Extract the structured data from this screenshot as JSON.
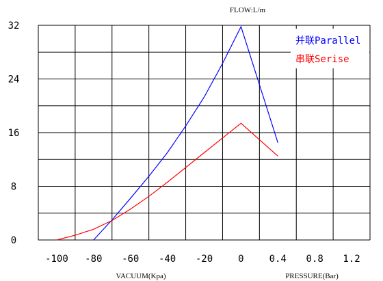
{
  "chart_data": {
    "type": "line",
    "title": "FLOW:L/m",
    "x_left_label": "VACUUM(Kpa)",
    "x_right_label": "PRESSURE(Bar)",
    "y_ticks": [
      "0",
      "8",
      "16",
      "24",
      "32"
    ],
    "x_left_ticks": [
      "-100",
      "-80",
      "-60",
      "-40",
      "-20",
      "0"
    ],
    "x_right_ticks": [
      "0.4",
      "0.8",
      "1.2"
    ],
    "grid": true,
    "legend_position": "top-right",
    "series": [
      {
        "name": "并联Parallel",
        "color": "#0000ff",
        "vacuum_points": [
          [
            -80,
            0
          ],
          [
            -70,
            3
          ],
          [
            -60,
            6.2
          ],
          [
            -50,
            9.5
          ],
          [
            -40,
            13
          ],
          [
            -30,
            17
          ],
          [
            -20,
            21.3
          ],
          [
            -10,
            26.3
          ],
          [
            0,
            31.8
          ]
        ],
        "pressure_points": [
          [
            0,
            31.8
          ],
          [
            0.4,
            14.5
          ]
        ]
      },
      {
        "name": "串联Serise",
        "color": "#ff0000",
        "vacuum_points": [
          [
            -100,
            0
          ],
          [
            -90,
            0.7
          ],
          [
            -80,
            1.6
          ],
          [
            -70,
            2.9
          ],
          [
            -60,
            4.6
          ],
          [
            -50,
            6.5
          ],
          [
            -40,
            8.6
          ],
          [
            -30,
            10.8
          ],
          [
            -20,
            13
          ],
          [
            -10,
            15.2
          ],
          [
            0,
            17.4
          ]
        ],
        "pressure_points": [
          [
            0,
            17.4
          ],
          [
            0.4,
            12.5
          ]
        ]
      }
    ]
  }
}
